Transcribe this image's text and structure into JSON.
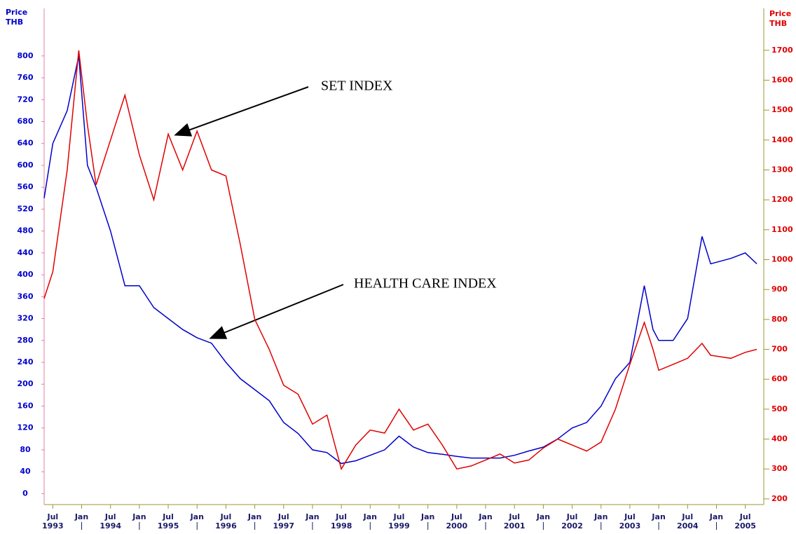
{
  "chart_data": {
    "type": "line",
    "ylabel": [
      "Price",
      "THB"
    ],
    "y2label": [
      "Price",
      "THB"
    ],
    "annotations": [
      "SET INDEX",
      "HEALTH CARE INDEX"
    ],
    "x": [
      1993.35,
      1993.5,
      1993.75,
      1993.95,
      1994.1,
      1994.25,
      1994.5,
      1994.75,
      1995.0,
      1995.25,
      1995.5,
      1995.75,
      1996.0,
      1996.25,
      1996.5,
      1996.75,
      1997.0,
      1997.25,
      1997.5,
      1997.75,
      1998.0,
      1998.25,
      1998.5,
      1998.75,
      1999.0,
      1999.25,
      1999.5,
      1999.75,
      2000.0,
      2000.25,
      2000.5,
      2000.75,
      2001.0,
      2001.25,
      2001.5,
      2001.75,
      2002.0,
      2002.25,
      2002.5,
      2002.75,
      2003.0,
      2003.25,
      2003.5,
      2003.75,
      2003.9,
      2004.0,
      2004.25,
      2004.5,
      2004.75,
      2004.9,
      2005.25,
      2005.5,
      2005.7
    ],
    "series": [
      {
        "name": "HEALTH CARE INDEX",
        "color": "#0000cc",
        "axis": "y",
        "values": [
          540,
          640,
          700,
          800,
          600,
          560,
          480,
          380,
          380,
          340,
          320,
          300,
          285,
          275,
          240,
          210,
          190,
          170,
          130,
          110,
          80,
          75,
          55,
          60,
          70,
          80,
          105,
          85,
          75,
          72,
          68,
          65,
          65,
          65,
          70,
          78,
          85,
          100,
          120,
          130,
          160,
          210,
          240,
          380,
          300,
          280,
          280,
          320,
          470,
          420,
          430,
          440,
          420
        ]
      },
      {
        "name": "SET INDEX",
        "color": "#e00000",
        "axis": "y2",
        "values": [
          870,
          960,
          1300,
          1700,
          1450,
          1250,
          1400,
          1550,
          1350,
          1200,
          1420,
          1300,
          1430,
          1300,
          1280,
          1050,
          800,
          700,
          580,
          550,
          450,
          480,
          300,
          380,
          430,
          420,
          500,
          430,
          450,
          380,
          300,
          310,
          330,
          350,
          320,
          330,
          370,
          400,
          380,
          360,
          390,
          500,
          650,
          790,
          700,
          630,
          650,
          670,
          720,
          680,
          670,
          690,
          700
        ]
      }
    ],
    "xlim": [
      1993.35,
      2005.82
    ],
    "xticks": [
      {
        "value": 1993.5,
        "label": "Jul",
        "year": "1993"
      },
      {
        "value": 1994.0,
        "label": "Jan"
      },
      {
        "value": 1994.5,
        "label": "Jul",
        "year": "1994"
      },
      {
        "value": 1995.0,
        "label": "Jan"
      },
      {
        "value": 1995.5,
        "label": "Jul",
        "year": "1995"
      },
      {
        "value": 1996.0,
        "label": "Jan"
      },
      {
        "value": 1996.5,
        "label": "Jul",
        "year": "1996"
      },
      {
        "value": 1997.0,
        "label": "Jan"
      },
      {
        "value": 1997.5,
        "label": "Jul",
        "year": "1997"
      },
      {
        "value": 1998.0,
        "label": "Jan"
      },
      {
        "value": 1998.5,
        "label": "Jul",
        "year": "1998"
      },
      {
        "value": 1999.0,
        "label": "Jan"
      },
      {
        "value": 1999.5,
        "label": "Jul",
        "year": "1999"
      },
      {
        "value": 2000.0,
        "label": "Jan"
      },
      {
        "value": 2000.5,
        "label": "Jul",
        "year": "2000"
      },
      {
        "value": 2001.0,
        "label": "Jan"
      },
      {
        "value": 2001.5,
        "label": "Jul",
        "year": "2001"
      },
      {
        "value": 2002.0,
        "label": "Jan"
      },
      {
        "value": 2002.5,
        "label": "Jul",
        "year": "2002"
      },
      {
        "value": 2003.0,
        "label": "Jan"
      },
      {
        "value": 2003.5,
        "label": "Jul",
        "year": "2003"
      },
      {
        "value": 2004.0,
        "label": "Jan"
      },
      {
        "value": 2004.5,
        "label": "Jul",
        "year": "2004"
      },
      {
        "value": 2005.0,
        "label": "Jan"
      },
      {
        "value": 2005.5,
        "label": "Jul",
        "year": "2005"
      }
    ],
    "ylim": [
      -20,
      883
    ],
    "yticks": [
      0,
      40,
      80,
      120,
      160,
      200,
      240,
      280,
      320,
      360,
      400,
      440,
      480,
      520,
      560,
      600,
      640,
      680,
      720,
      760,
      800
    ],
    "y2lim": [
      181,
      1833
    ],
    "y2ticks": [
      200,
      300,
      400,
      500,
      600,
      700,
      800,
      900,
      1000,
      1100,
      1200,
      1300,
      1400,
      1500,
      1600,
      1700
    ]
  }
}
